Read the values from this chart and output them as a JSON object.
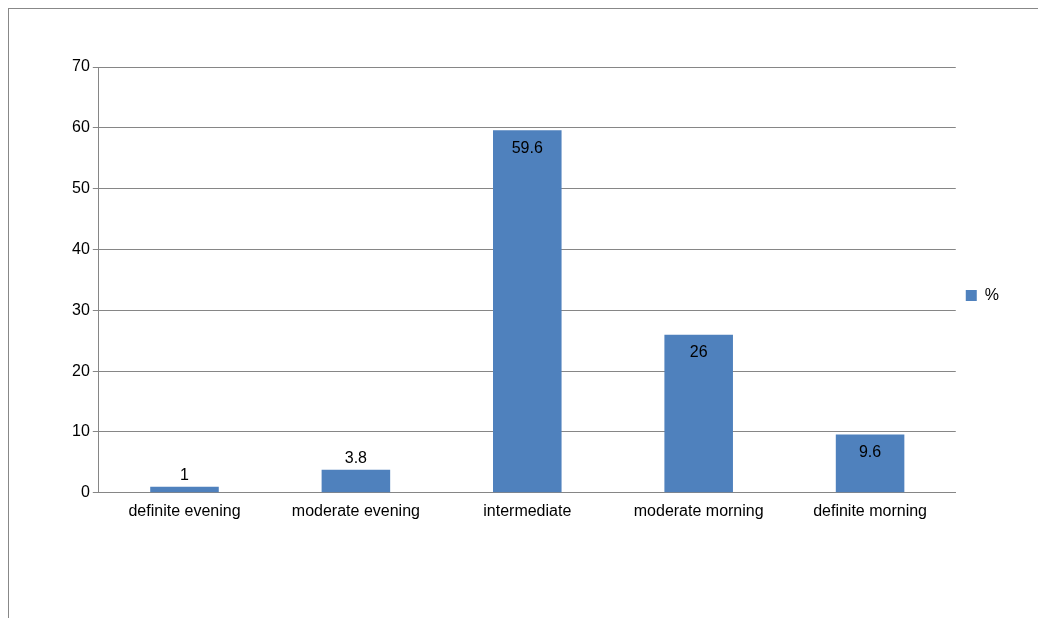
{
  "chart_data": {
    "type": "bar",
    "categories": [
      "definite evening",
      "moderate evening",
      "intermediate",
      "moderate morning",
      "definite morning"
    ],
    "series": [
      {
        "name": "%",
        "color": "#4f81bd",
        "values": [
          1,
          3.8,
          59.6,
          26,
          9.6
        ]
      }
    ],
    "ylim": [
      0,
      70
    ],
    "yticks": [
      0,
      10,
      20,
      30,
      40,
      50,
      60,
      70
    ],
    "grid": "y",
    "legend": "right",
    "data_labels": true
  }
}
